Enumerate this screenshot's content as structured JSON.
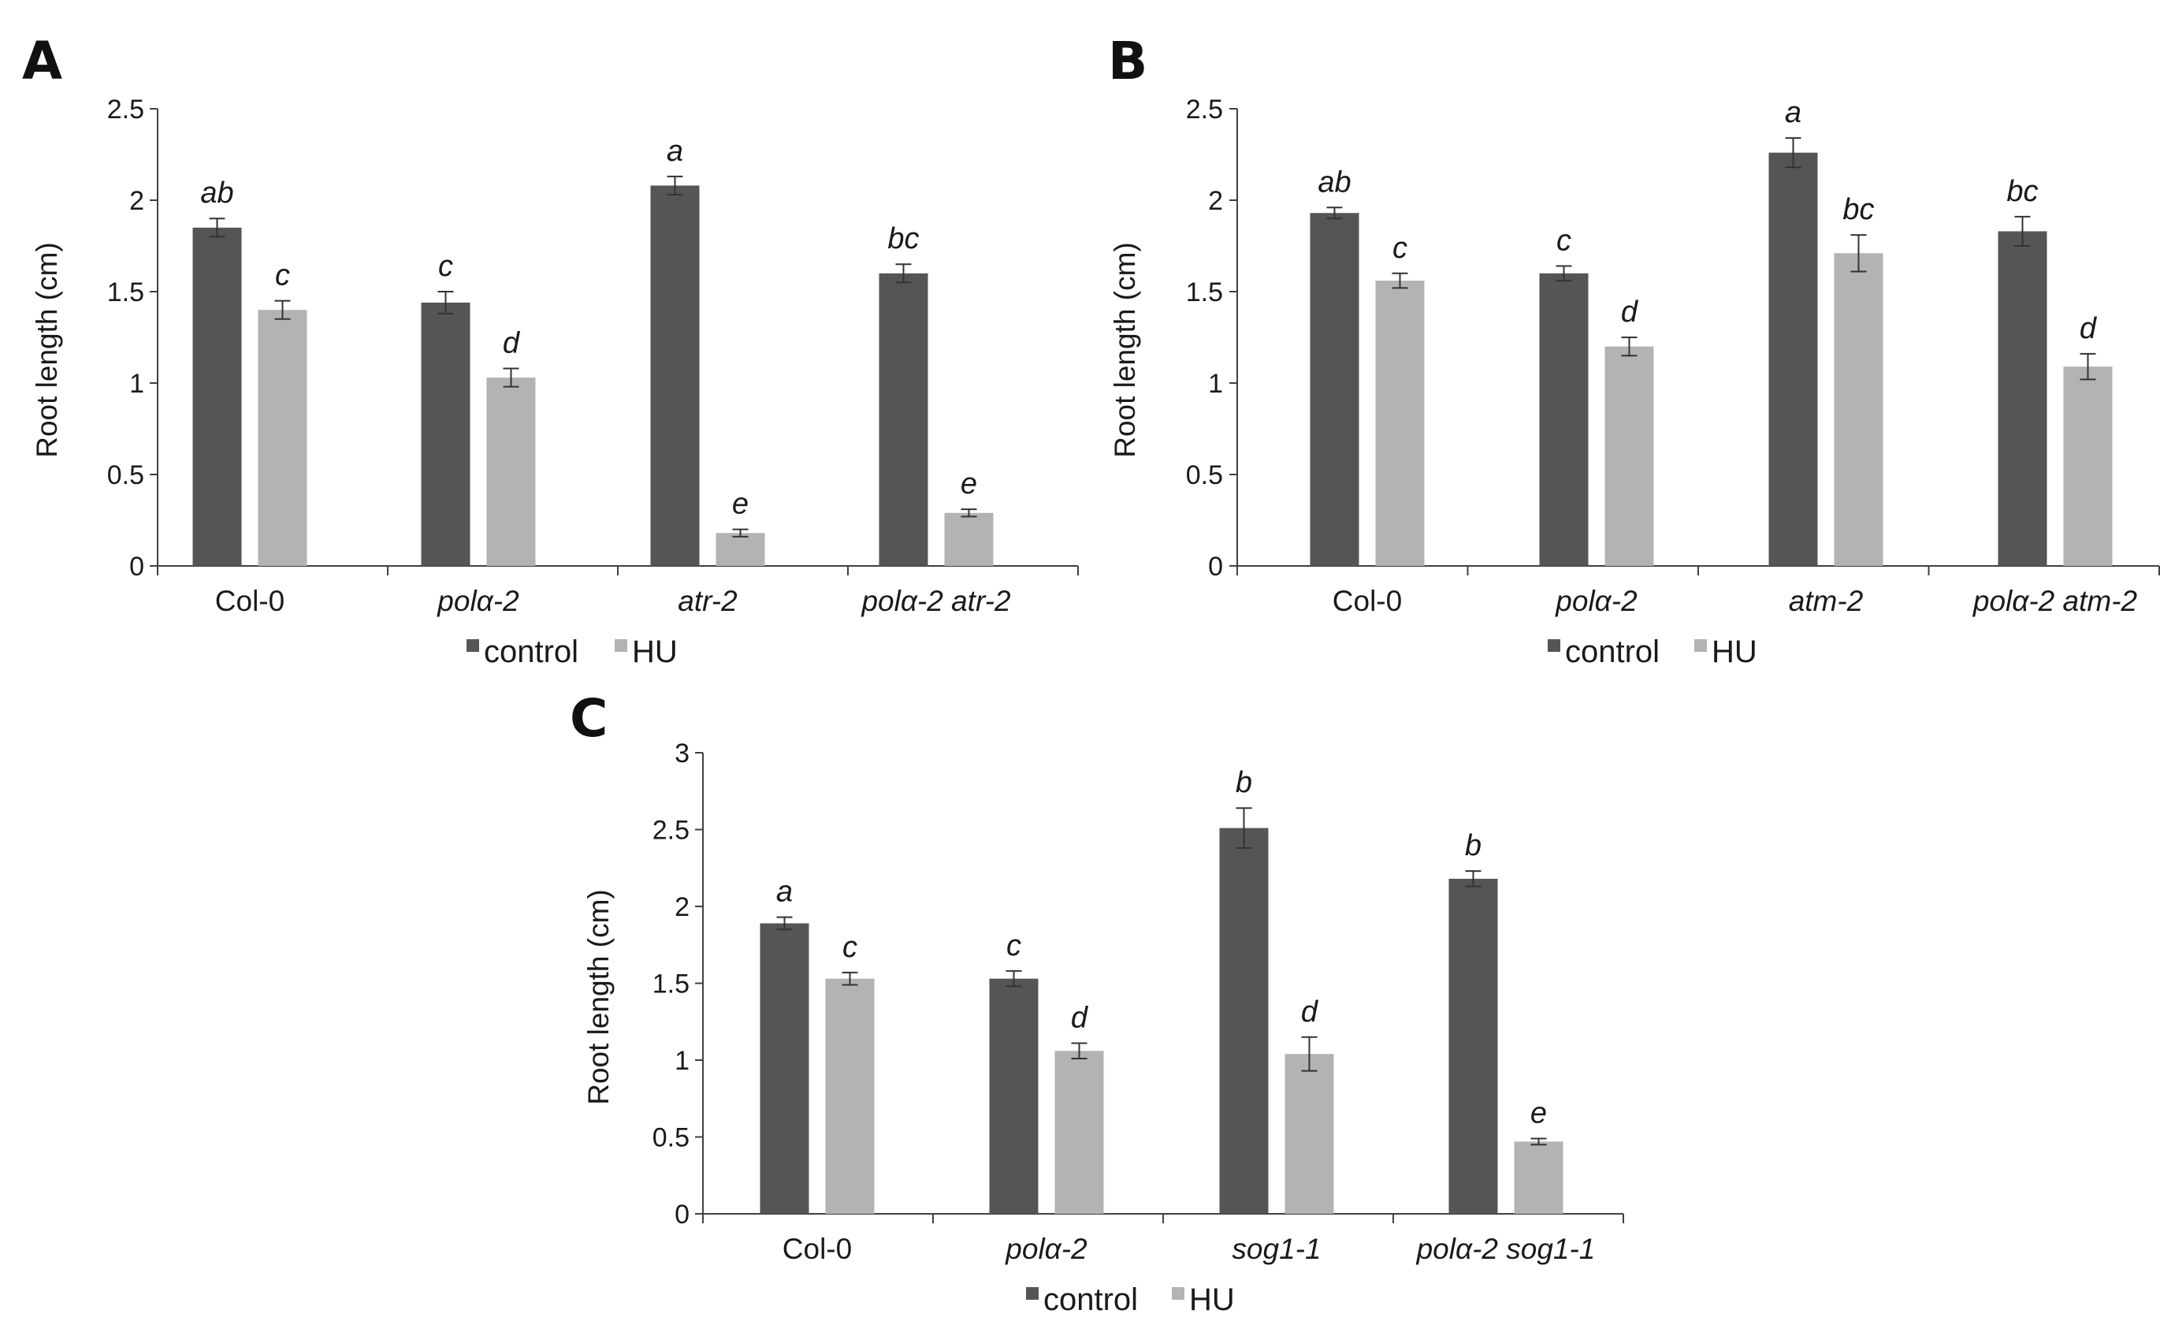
{
  "colors": {
    "control": "#555555",
    "HU": "#b3b3b3",
    "axis": "#404040",
    "text": "#1a1a1a"
  },
  "chart_data": [
    {
      "panel": "A",
      "type": "bar",
      "ylabel": "Root length (cm)",
      "ylim": [
        0,
        2.5
      ],
      "yticks": [
        0,
        0.5,
        1,
        1.5,
        2,
        2.5
      ],
      "ytick_labels": [
        "0",
        "0.5",
        "1",
        "1.5",
        "2",
        "2.5"
      ],
      "categories": [
        "Col-0",
        "polα-2",
        "atr-2",
        "polα-2 atr-2"
      ],
      "legend": [
        "control",
        "HU"
      ],
      "series": [
        {
          "name": "control",
          "values": [
            1.85,
            1.44,
            2.08,
            1.6
          ],
          "errors": [
            0.05,
            0.06,
            0.05,
            0.05
          ],
          "labels": [
            "ab",
            "c",
            "a",
            "bc"
          ]
        },
        {
          "name": "HU",
          "values": [
            1.4,
            1.03,
            0.18,
            0.29
          ],
          "errors": [
            0.05,
            0.05,
            0.02,
            0.02
          ],
          "labels": [
            "c",
            "d",
            "e",
            "e"
          ]
        }
      ]
    },
    {
      "panel": "B",
      "type": "bar",
      "ylabel": "Root length (cm)",
      "ylim": [
        0,
        2.5
      ],
      "yticks": [
        0,
        0.5,
        1,
        1.5,
        2,
        2.5
      ],
      "ytick_labels": [
        "0",
        "0.5",
        "1",
        "1.5",
        "2",
        "2.5"
      ],
      "categories": [
        "Col-0",
        "polα-2",
        "atm-2",
        "polα-2 atm-2"
      ],
      "legend": [
        "control",
        "HU"
      ],
      "series": [
        {
          "name": "control",
          "values": [
            1.93,
            1.6,
            2.26,
            1.83
          ],
          "errors": [
            0.03,
            0.04,
            0.08,
            0.08
          ],
          "labels": [
            "ab",
            "c",
            "a",
            "bc"
          ]
        },
        {
          "name": "HU",
          "values": [
            1.56,
            1.2,
            1.71,
            1.09
          ],
          "errors": [
            0.04,
            0.05,
            0.1,
            0.07
          ],
          "labels": [
            "c",
            "d",
            "bc",
            "d"
          ]
        }
      ]
    },
    {
      "panel": "C",
      "type": "bar",
      "ylabel": "Root length (cm)",
      "ylim": [
        0,
        3
      ],
      "yticks": [
        0,
        0.5,
        1,
        1.5,
        2,
        2.5,
        3
      ],
      "ytick_labels": [
        "0",
        "0.5",
        "1",
        "1.5",
        "2",
        "2.5",
        "3"
      ],
      "categories": [
        "Col-0",
        "polα-2",
        "sog1-1",
        "polα-2 sog1-1"
      ],
      "legend": [
        "control",
        "HU"
      ],
      "series": [
        {
          "name": "control",
          "values": [
            1.89,
            1.53,
            2.51,
            2.18
          ],
          "errors": [
            0.04,
            0.05,
            0.13,
            0.05
          ],
          "labels": [
            "a",
            "c",
            "b",
            "b"
          ]
        },
        {
          "name": "HU",
          "values": [
            1.53,
            1.06,
            1.04,
            0.47
          ],
          "errors": [
            0.04,
            0.05,
            0.11,
            0.02
          ],
          "labels": [
            "c",
            "d",
            "d",
            "e"
          ]
        }
      ]
    }
  ]
}
